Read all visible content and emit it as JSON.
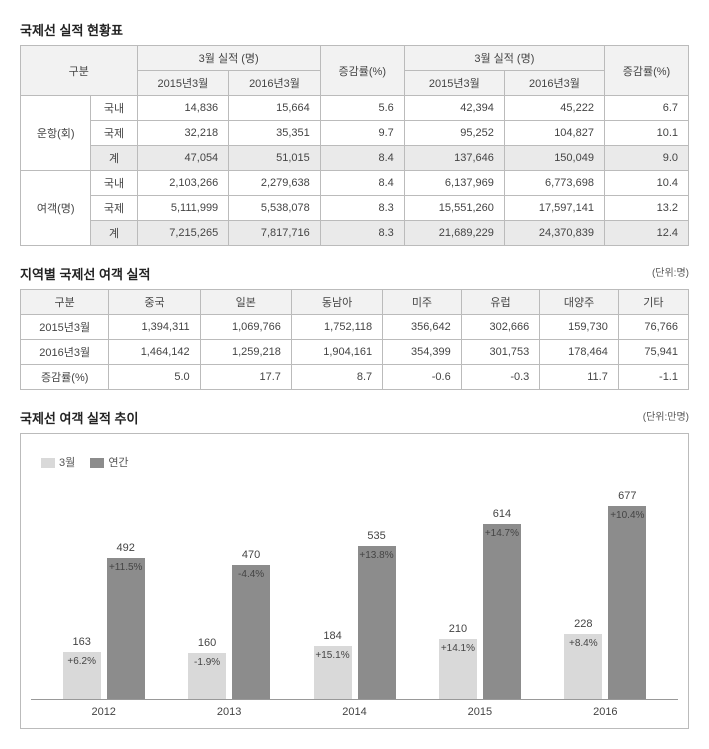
{
  "table1": {
    "title": "국제선 실적 현황표",
    "headers": {
      "gubun": "구분",
      "month_perf": "3월 실적 (명)",
      "y2015": "2015년3월",
      "y2016": "2016년3월",
      "rate": "증감률(%)"
    },
    "groups": [
      {
        "name": "운항(회)",
        "rows": [
          {
            "label": "국내",
            "a": "14,836",
            "b": "15,664",
            "r1": "5.6",
            "c": "42,394",
            "d": "45,222",
            "r2": "6.7",
            "hl": false
          },
          {
            "label": "국제",
            "a": "32,218",
            "b": "35,351",
            "r1": "9.7",
            "c": "95,252",
            "d": "104,827",
            "r2": "10.1",
            "hl": false
          },
          {
            "label": "계",
            "a": "47,054",
            "b": "51,015",
            "r1": "8.4",
            "c": "137,646",
            "d": "150,049",
            "r2": "9.0",
            "hl": true
          }
        ]
      },
      {
        "name": "여객(명)",
        "rows": [
          {
            "label": "국내",
            "a": "2,103,266",
            "b": "2,279,638",
            "r1": "8.4",
            "c": "6,137,969",
            "d": "6,773,698",
            "r2": "10.4",
            "hl": false
          },
          {
            "label": "국제",
            "a": "5,111,999",
            "b": "5,538,078",
            "r1": "8.3",
            "c": "15,551,260",
            "d": "17,597,141",
            "r2": "13.2",
            "hl": false
          },
          {
            "label": "계",
            "a": "7,215,265",
            "b": "7,817,716",
            "r1": "8.3",
            "c": "21,689,229",
            "d": "24,370,839",
            "r2": "12.4",
            "hl": true
          }
        ]
      }
    ]
  },
  "table2": {
    "title": "지역별 국제선 여객 실적",
    "unit": "(단위:명)",
    "headers": [
      "구분",
      "중국",
      "일본",
      "동남아",
      "미주",
      "유럽",
      "대양주",
      "기타"
    ],
    "rows": [
      {
        "label": "2015년3월",
        "v": [
          "1,394,311",
          "1,069,766",
          "1,752,118",
          "356,642",
          "302,666",
          "159,730",
          "76,766"
        ]
      },
      {
        "label": "2016년3월",
        "v": [
          "1,464,142",
          "1,259,218",
          "1,904,161",
          "354,399",
          "301,753",
          "178,464",
          "75,941"
        ]
      },
      {
        "label": "증감률(%)",
        "v": [
          "5.0",
          "17.7",
          "8.7",
          "-0.6",
          "-0.3",
          "11.7",
          "-1.1"
        ]
      }
    ]
  },
  "chart": {
    "title": "국제선 여객 실적 추이",
    "unit": "(단위:만명)",
    "legend": {
      "march": "3월",
      "annual": "연간"
    },
    "colors": {
      "march": "#d9d9d9",
      "annual": "#8c8c8c"
    },
    "max_value": 700,
    "years": [
      {
        "year": "2012",
        "march": {
          "val": 163,
          "pct": "+6.2%"
        },
        "annual": {
          "val": 492,
          "pct": "+11.5%"
        }
      },
      {
        "year": "2013",
        "march": {
          "val": 160,
          "pct": "-1.9%"
        },
        "annual": {
          "val": 470,
          "pct": "-4.4%"
        }
      },
      {
        "year": "2014",
        "march": {
          "val": 184,
          "pct": "+15.1%"
        },
        "annual": {
          "val": 535,
          "pct": "+13.8%"
        }
      },
      {
        "year": "2015",
        "march": {
          "val": 210,
          "pct": "+14.1%"
        },
        "annual": {
          "val": 614,
          "pct": "+14.7%"
        }
      },
      {
        "year": "2016",
        "march": {
          "val": 228,
          "pct": "+8.4%"
        },
        "annual": {
          "val": 677,
          "pct": "+10.4%"
        }
      }
    ]
  }
}
